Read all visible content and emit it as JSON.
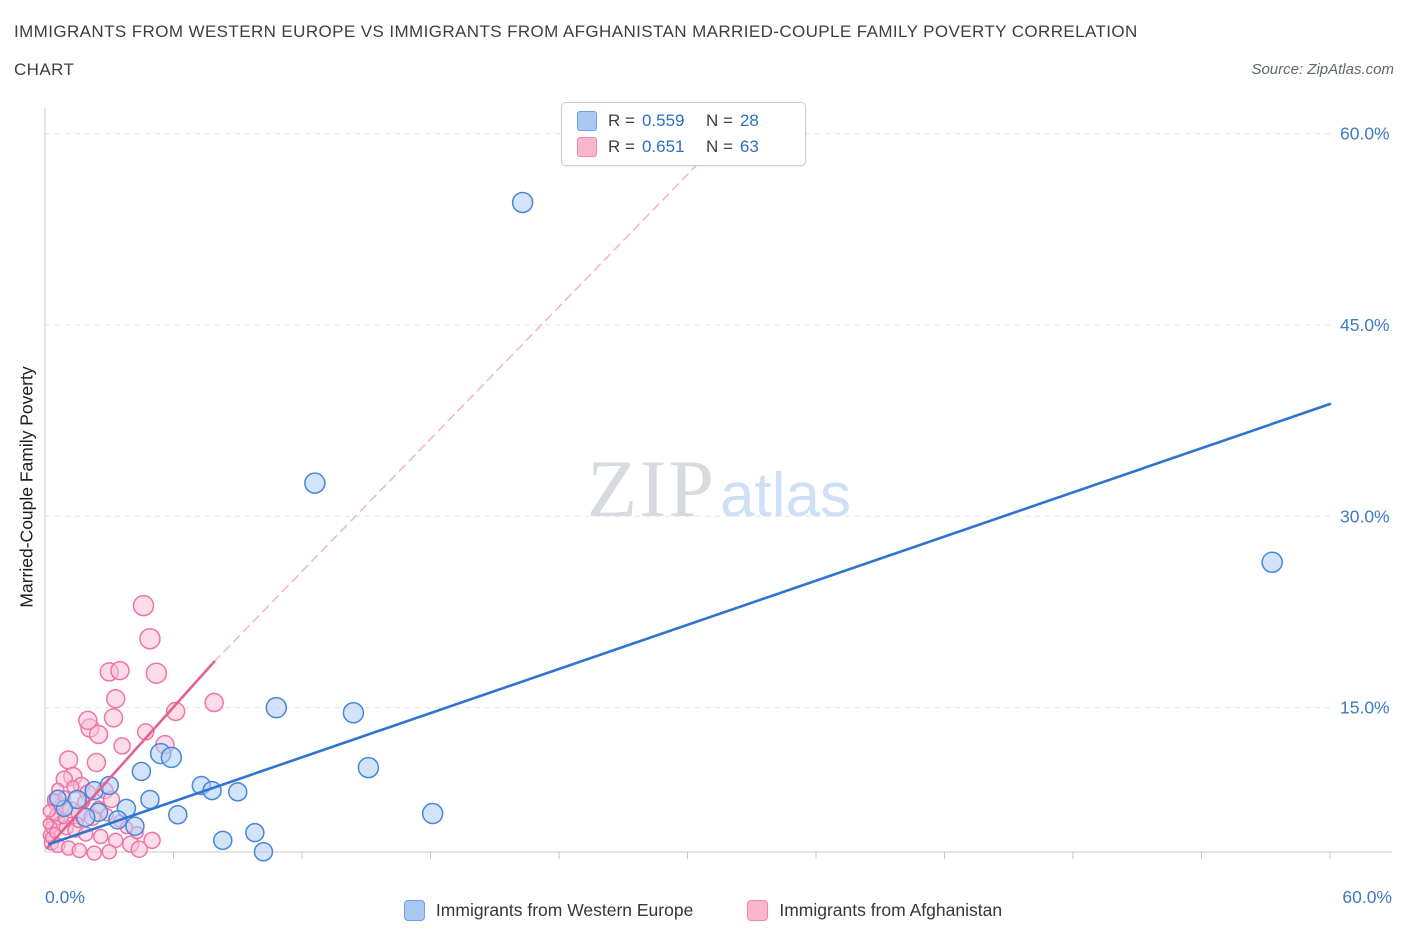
{
  "header": {
    "title_line1": "IMMIGRANTS FROM WESTERN EUROPE VS IMMIGRANTS FROM AFGHANISTAN MARRIED-COUPLE FAMILY POVERTY CORRELATION",
    "title_line2": "CHART",
    "source": "Source: ZipAtlas.com"
  },
  "y_axis_label": "Married-Couple Family Poverty",
  "watermark": {
    "zip": "ZIP",
    "atlas": "atlas"
  },
  "correlation_legend": {
    "rows": [
      {
        "series": "Immigrants from Western Europe",
        "r_label": "R =",
        "r_value": "0.559",
        "n_label": "N =",
        "n_value": "28"
      },
      {
        "series": "Immigrants from Afghanistan",
        "r_label": "R =",
        "r_value": "0.651",
        "n_label": "N =",
        "n_value": "63"
      }
    ]
  },
  "bottom_legend": {
    "western_europe": "Immigrants from Western Europe",
    "afghanistan": "Immigrants from Afghanistan"
  },
  "colors": {
    "axis_label_blue": "#3f7bc2",
    "blue_point_fill": "#aecdf5",
    "blue_point_stroke": "#4a86d8",
    "pink_point_fill": "#f9c0d5",
    "pink_point_stroke": "#ef74a5",
    "blue_trend": "#2f74d0",
    "pink_trend": "#e4618f",
    "pink_trend_dashed": "#f2b9cb"
  },
  "chart_data": {
    "type": "scatter",
    "title": "Immigrants from Western Europe vs Immigrants from Afghanistan Married-Couple Family Poverty Correlation Chart",
    "xlabel": "",
    "ylabel": "Married-Couple Family Poverty",
    "xlim": [
      0,
      0.6
    ],
    "ylim": [
      0.035,
      0.62
    ],
    "grid": "horizontal-dashed",
    "legend_position": "top-center and bottom-center",
    "x_tick_step": 0.06,
    "x_ticks": [
      {
        "v": 0.0,
        "label": "0.0%"
      },
      {
        "v": 0.6,
        "label": "60.0%"
      }
    ],
    "y_ticks": [
      {
        "v": 0.6,
        "label": "60.0%"
      },
      {
        "v": 0.45,
        "label": "45.0%"
      },
      {
        "v": 0.3,
        "label": "30.0%"
      },
      {
        "v": 0.15,
        "label": "15.0%"
      }
    ],
    "series": [
      {
        "name": "Immigrants from Afghanistan",
        "point_name": "scatter-point-afghanistan",
        "R": 0.651,
        "N": 63,
        "fill": "#f9c0d5",
        "stroke": "#ef74a5",
        "points": [
          [
            0.046,
            0.23,
            10
          ],
          [
            0.049,
            0.204,
            10
          ],
          [
            0.052,
            0.177,
            10
          ],
          [
            0.03,
            0.178,
            9
          ],
          [
            0.035,
            0.179,
            9
          ],
          [
            0.079,
            0.154,
            9
          ],
          [
            0.033,
            0.157,
            9
          ],
          [
            0.021,
            0.134,
            9
          ],
          [
            0.025,
            0.129,
            9
          ],
          [
            0.061,
            0.147,
            9
          ],
          [
            0.056,
            0.121,
            9
          ],
          [
            0.032,
            0.142,
            9
          ],
          [
            0.02,
            0.14,
            9
          ],
          [
            0.047,
            0.131,
            8
          ],
          [
            0.036,
            0.12,
            8
          ],
          [
            0.011,
            0.109,
            9
          ],
          [
            0.013,
            0.096,
            9
          ],
          [
            0.024,
            0.107,
            9
          ],
          [
            0.009,
            0.094,
            8
          ],
          [
            0.017,
            0.089,
            8
          ],
          [
            0.02,
            0.083,
            8
          ],
          [
            0.028,
            0.085,
            8
          ],
          [
            0.031,
            0.078,
            8
          ],
          [
            0.005,
            0.076,
            8
          ],
          [
            0.008,
            0.073,
            8
          ],
          [
            0.012,
            0.07,
            8
          ],
          [
            0.016,
            0.067,
            8
          ],
          [
            0.022,
            0.064,
            8
          ],
          [
            0.004,
            0.062,
            7
          ],
          [
            0.007,
            0.059,
            7
          ],
          [
            0.01,
            0.056,
            7
          ],
          [
            0.014,
            0.054,
            7
          ],
          [
            0.019,
            0.051,
            7
          ],
          [
            0.026,
            0.049,
            7
          ],
          [
            0.033,
            0.046,
            7
          ],
          [
            0.003,
            0.044,
            7
          ],
          [
            0.006,
            0.042,
            7
          ],
          [
            0.011,
            0.04,
            7
          ],
          [
            0.016,
            0.038,
            7
          ],
          [
            0.023,
            0.036,
            7
          ],
          [
            0.03,
            0.037,
            7
          ],
          [
            0.04,
            0.043,
            8
          ],
          [
            0.044,
            0.039,
            8
          ],
          [
            0.05,
            0.046,
            8
          ],
          [
            0.002,
            0.05,
            6
          ],
          [
            0.003,
            0.056,
            6
          ],
          [
            0.005,
            0.066,
            6
          ],
          [
            0.002,
            0.069,
            6
          ],
          [
            0.004,
            0.078,
            6
          ],
          [
            0.006,
            0.086,
            6
          ],
          [
            0.009,
            0.08,
            6
          ],
          [
            0.013,
            0.088,
            6
          ],
          [
            0.018,
            0.076,
            6
          ],
          [
            0.025,
            0.072,
            6
          ],
          [
            0.029,
            0.066,
            6
          ],
          [
            0.035,
            0.061,
            6
          ],
          [
            0.038,
            0.056,
            6
          ],
          [
            0.043,
            0.052,
            6
          ],
          [
            0.0015,
            0.059,
            5
          ],
          [
            0.0025,
            0.048,
            5
          ],
          [
            0.0045,
            0.052,
            5
          ],
          [
            0.0085,
            0.063,
            5
          ],
          [
            0.0155,
            0.06,
            5
          ]
        ]
      },
      {
        "name": "Immigrants from Western Europe",
        "point_name": "scatter-point-western-europe",
        "R": 0.559,
        "N": 28,
        "fill": "#aecdf5",
        "stroke": "#4a86d8",
        "points": [
          [
            0.223,
            0.546,
            10
          ],
          [
            0.126,
            0.326,
            10
          ],
          [
            0.573,
            0.264,
            10
          ],
          [
            0.108,
            0.15,
            10
          ],
          [
            0.144,
            0.146,
            10
          ],
          [
            0.151,
            0.103,
            10
          ],
          [
            0.181,
            0.067,
            10
          ],
          [
            0.054,
            0.114,
            10
          ],
          [
            0.059,
            0.111,
            10
          ],
          [
            0.09,
            0.084,
            9
          ],
          [
            0.073,
            0.089,
            9
          ],
          [
            0.078,
            0.085,
            9
          ],
          [
            0.015,
            0.078,
            9
          ],
          [
            0.023,
            0.085,
            9
          ],
          [
            0.03,
            0.089,
            9
          ],
          [
            0.038,
            0.071,
            9
          ],
          [
            0.045,
            0.1,
            9
          ],
          [
            0.049,
            0.078,
            9
          ],
          [
            0.025,
            0.068,
            9
          ],
          [
            0.019,
            0.064,
            9
          ],
          [
            0.034,
            0.062,
            9
          ],
          [
            0.042,
            0.057,
            9
          ],
          [
            0.083,
            0.046,
            9
          ],
          [
            0.098,
            0.052,
            9
          ],
          [
            0.102,
            0.037,
            9
          ],
          [
            0.009,
            0.071,
            8
          ],
          [
            0.006,
            0.079,
            8
          ],
          [
            0.062,
            0.066,
            9
          ]
        ]
      }
    ],
    "trend_lines": [
      {
        "name": "afghanistan-trend-extension",
        "style": "dashed",
        "color": "#f2b9cb",
        "width": 1.6,
        "x1": 0.079,
        "y1": 0.186,
        "x2": 0.333,
        "y2": 0.625
      },
      {
        "name": "afghanistan-trend-line",
        "style": "solid",
        "color": "#e4618f",
        "width": 2.6,
        "x1": 0.001,
        "y1": 0.04,
        "x2": 0.079,
        "y2": 0.186
      },
      {
        "name": "western-europe-trend-line",
        "style": "solid",
        "color": "#2f74d0",
        "width": 2.6,
        "x1": 0.002,
        "y1": 0.043,
        "x2": 0.6,
        "y2": 0.388
      }
    ]
  }
}
